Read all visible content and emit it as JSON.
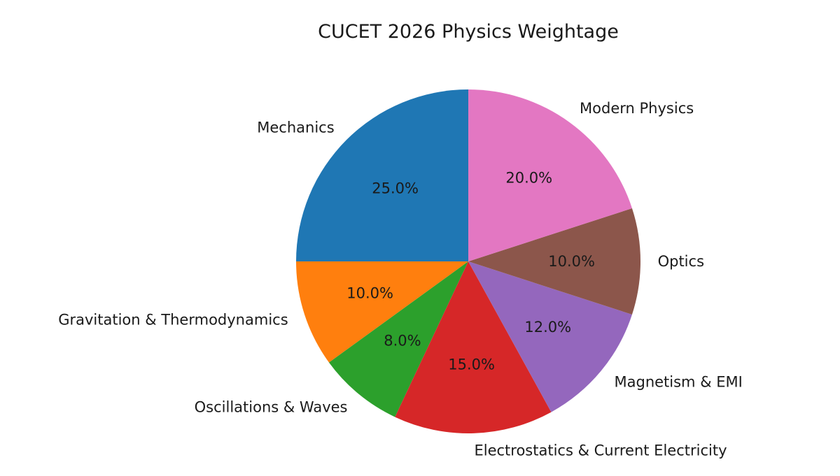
{
  "chart_data": {
    "type": "pie",
    "title": "CUCET 2026 Physics Weightage",
    "categories": [
      "Mechanics",
      "Gravitation & Thermodynamics",
      "Oscillations & Waves",
      "Electrostatics & Current Electricity",
      "Magnetism & EMI",
      "Optics",
      "Modern Physics"
    ],
    "values": [
      25,
      10,
      8,
      15,
      12,
      10,
      20
    ],
    "percent_labels": [
      "25.0%",
      "10.0%",
      "8.0%",
      "15.0%",
      "12.0%",
      "10.0%",
      "20.0%"
    ],
    "colors": [
      "#1f77b4",
      "#ff7f0e",
      "#2ca02c",
      "#d62728",
      "#9467bd",
      "#8c564b",
      "#e377c2"
    ],
    "start_angle_deg": 90,
    "direction": "counterclockwise",
    "legend": "none"
  }
}
